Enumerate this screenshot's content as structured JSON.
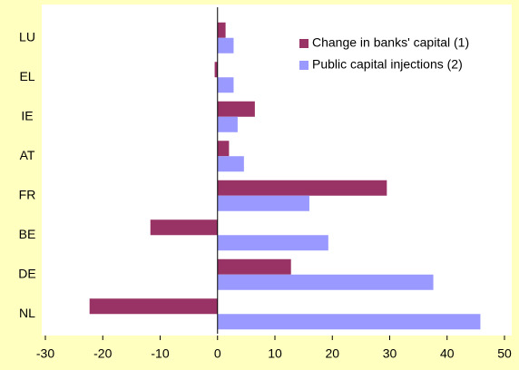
{
  "chart_data": {
    "type": "hbar",
    "categories": [
      "LU",
      "EL",
      "IE",
      "AT",
      "FR",
      "BE",
      "DE",
      "NL"
    ],
    "series": [
      {
        "name": "Change in banks' capital (1)",
        "color": "#993366",
        "values": [
          1.4,
          -0.5,
          6.5,
          2,
          29.5,
          -11.7,
          12.8,
          -22.3
        ]
      },
      {
        "name": "Public capital injections (2)",
        "color": "#9999ff",
        "values": [
          2.8,
          2.8,
          3.5,
          4.6,
          16,
          19.3,
          37.6,
          45.8
        ]
      }
    ],
    "xlim": [
      -30,
      50
    ],
    "xticks": [
      -30,
      -20,
      -10,
      0,
      10,
      20,
      30,
      40,
      50
    ],
    "legend": "upper right",
    "grid": false
  }
}
